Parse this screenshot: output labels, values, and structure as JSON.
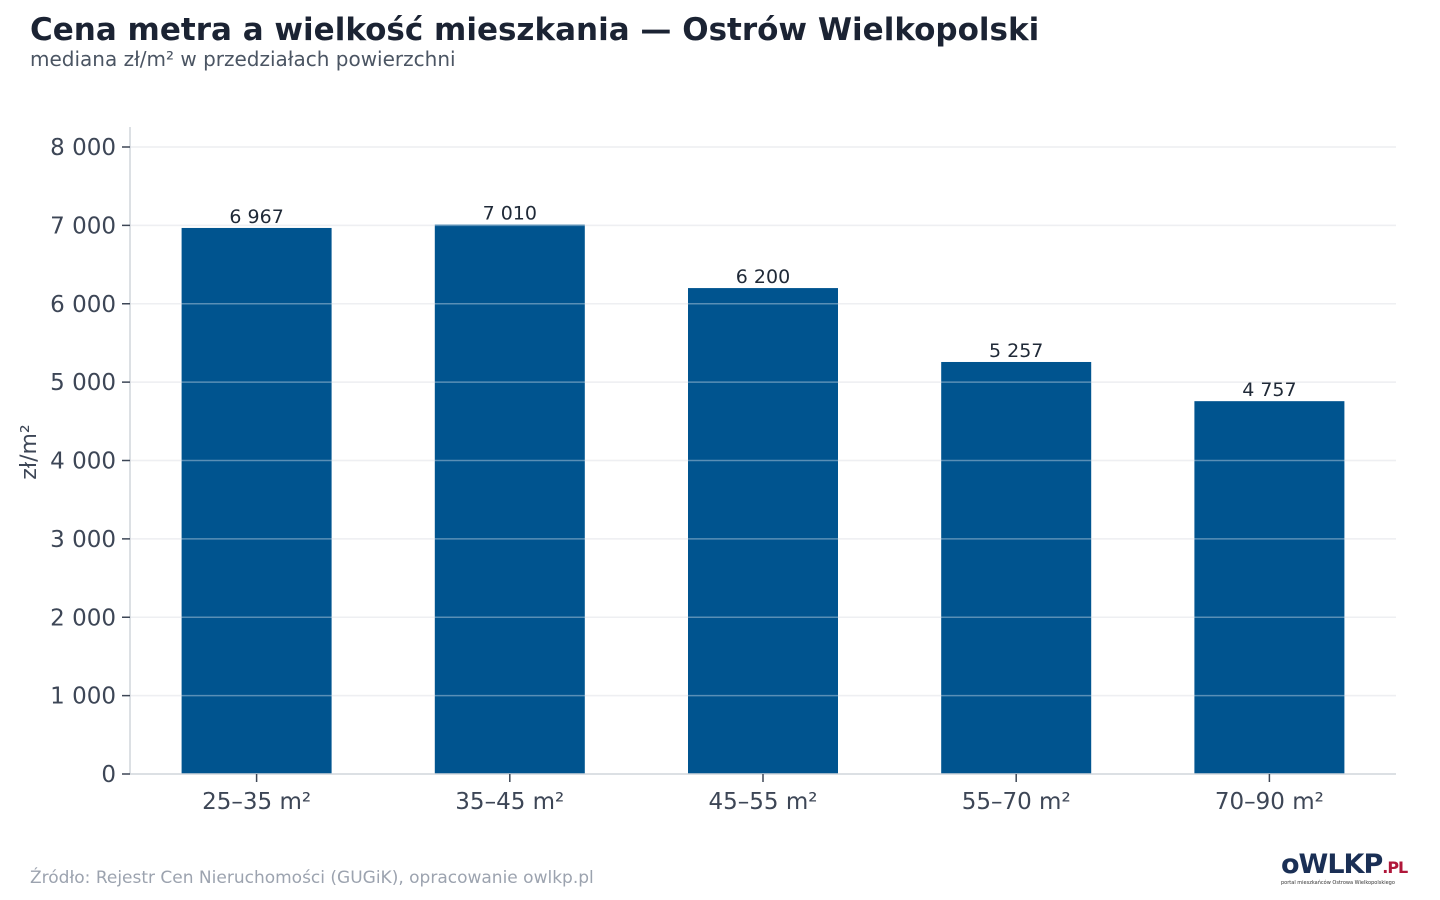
{
  "header": {
    "title": "Cena metra a wielkość mieszkania — Ostrów Wielkopolski",
    "subtitle": "mediana zł/m² w przedziałach powierzchni"
  },
  "footer": {
    "source": "Źródło: Rejestr Cen Nieruchomości (GUGiK), opracowanie owlkp.pl"
  },
  "logo": {
    "main": "oWLKP",
    "ext": ".PL",
    "tagline": "portal mieszkańców Ostrowa Wielkopolskiego"
  },
  "colors": {
    "bar": "#00548f",
    "grid": "#e5e7eb",
    "axis": "#d1d5db"
  },
  "chart_data": {
    "type": "bar",
    "title": "Cena metra a wielkość mieszkania — Ostrów Wielkopolski",
    "subtitle": "mediana zł/m² w przedziałach powierzchni",
    "xlabel": "",
    "ylabel": "zł/m²",
    "categories": [
      "25–35 m²",
      "35–45 m²",
      "45–55 m²",
      "55–70 m²",
      "70–90 m²"
    ],
    "values": [
      6967,
      7010,
      6200,
      5257,
      4757
    ],
    "value_labels": [
      "6 967",
      "7 010",
      "6 200",
      "5 257",
      "4 757"
    ],
    "ylim": [
      0,
      8000
    ],
    "yticks": [
      0,
      1000,
      2000,
      3000,
      4000,
      5000,
      6000,
      7000,
      8000
    ],
    "ytick_labels": [
      "0",
      "1 000",
      "2 000",
      "3 000",
      "4 000",
      "5 000",
      "6 000",
      "7 000",
      "8 000"
    ],
    "grid": true,
    "legend": "none"
  }
}
